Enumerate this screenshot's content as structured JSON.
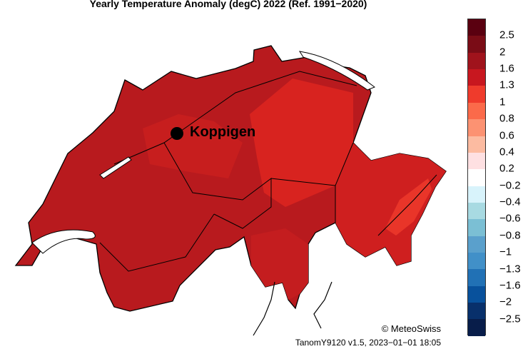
{
  "title": "Yearly Temperature Anomaly (degC) 2022  (Ref. 1991−2020)",
  "map": {
    "place": "Koppigen",
    "fill_colors": {
      "dominant": "#b81a1e",
      "darker": "#a0131c",
      "lighter": "#d8231f",
      "warm_accent": "#ef3b2c"
    },
    "border_color": "#000000",
    "lake_color": "#ffffff"
  },
  "colorbar": {
    "colors": [
      "#5a0010",
      "#7a0c16",
      "#a0131c",
      "#c8171f",
      "#ef3b2c",
      "#fb6a4a",
      "#fc9272",
      "#fcbba1",
      "#fee0e2",
      "#ffffff",
      "#d8f3fb",
      "#a8dae2",
      "#7bbfd4",
      "#5aa0cc",
      "#4190c8",
      "#2171b5",
      "#08519c",
      "#08306b",
      "#081d4a"
    ],
    "labels": [
      "2.5",
      "2",
      "1.6",
      "1.3",
      "1",
      "0.8",
      "0.6",
      "0.4",
      "0.2",
      "−0.2",
      "−0.4",
      "−0.6",
      "−0.8",
      "−1",
      "−1.3",
      "−1.6",
      "−2",
      "−2.5"
    ]
  },
  "credit": "© MeteoSwiss",
  "version": "TanomY9120 v1.5, 2023−01−01 18:05"
}
